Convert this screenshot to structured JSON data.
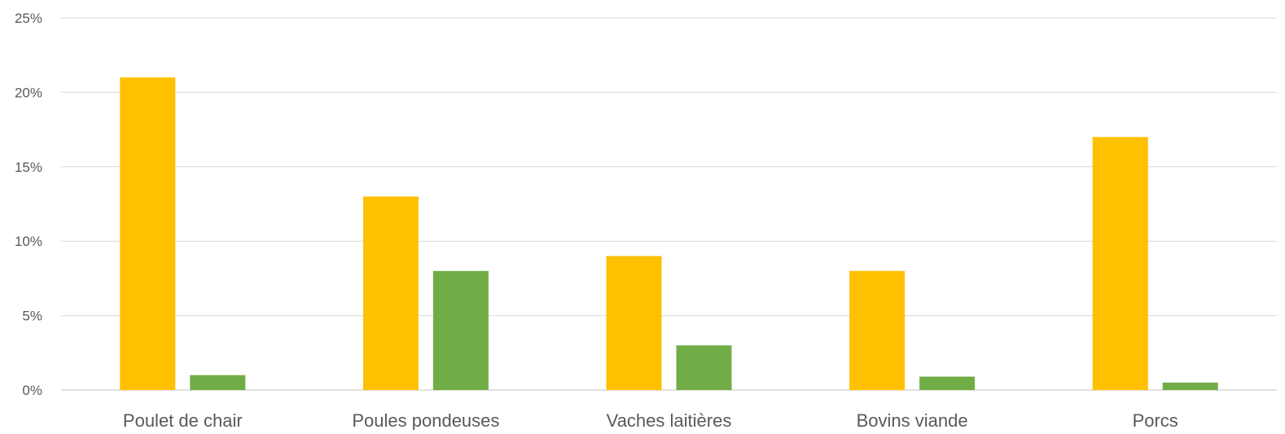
{
  "chart_data": {
    "type": "bar",
    "categories": [
      "Poulet de chair",
      "Poules pondeuses",
      "Vaches laitières",
      "Bovins viande",
      "Porcs"
    ],
    "series": [
      {
        "values": [
          21,
          13,
          9,
          8,
          17
        ],
        "color": "#FFC000"
      },
      {
        "values": [
          1,
          8,
          3,
          0.9,
          0.5
        ],
        "color": "#70AD47"
      }
    ],
    "y_ticks": [
      "0%",
      "5%",
      "10%",
      "15%",
      "20%",
      "25%"
    ],
    "y_tick_values": [
      0,
      5,
      10,
      15,
      20,
      25
    ],
    "ylim": [
      0,
      25
    ],
    "grid": true,
    "gridline_color": "#D9D9D9",
    "legend": "none"
  }
}
